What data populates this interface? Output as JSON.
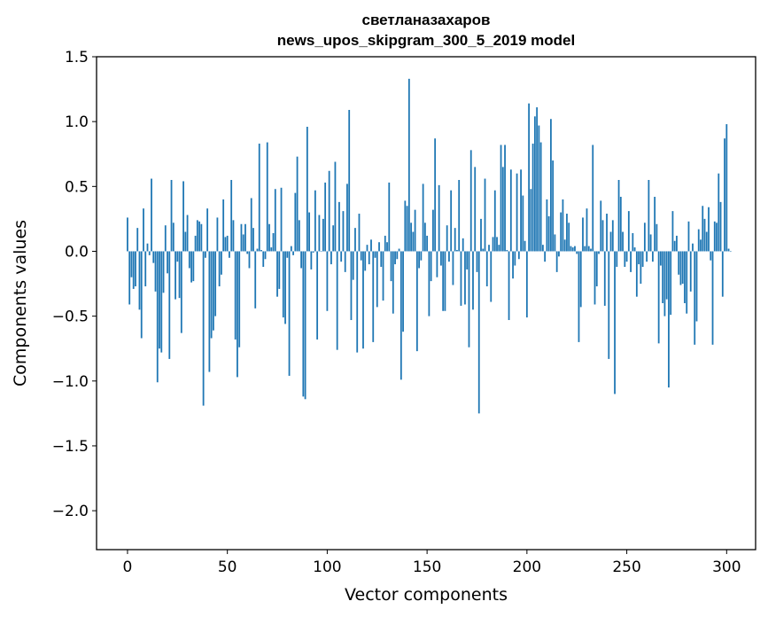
{
  "chart_data": {
    "type": "bar",
    "title": "светланазахаров",
    "subtitle": "news_upos_skipgram_300_5_2019 model",
    "xlabel": "Vector components",
    "ylabel": "Components values",
    "xlim": [
      -15.5,
      314.5
    ],
    "ylim": [
      -2.3,
      1.5
    ],
    "xticks": [
      0,
      50,
      100,
      150,
      200,
      250,
      300
    ],
    "xtick_labels": [
      "0",
      "50",
      "100",
      "150",
      "200",
      "250",
      "300"
    ],
    "yticks": [
      1.5,
      1.0,
      0.5,
      0.0,
      -0.5,
      -1.0,
      -1.5,
      -2.0
    ],
    "ytick_labels": [
      "1.5",
      "1.0",
      "0.5",
      "0.0",
      "−0.5",
      "−1.0",
      "−1.5",
      "−2.0"
    ],
    "bar_color": "#1f77b4",
    "series": [
      {
        "name": "светланазахаров",
        "values": [
          0.26,
          -0.41,
          -0.2,
          -0.29,
          -0.27,
          0.18,
          -0.45,
          -0.67,
          0.33,
          -0.27,
          0.06,
          -0.03,
          0.56,
          -0.09,
          -0.31,
          -1.01,
          -0.75,
          -0.78,
          -0.32,
          0.2,
          -0.17,
          -0.83,
          0.55,
          0.22,
          -0.37,
          -0.08,
          -0.36,
          -0.63,
          0.54,
          0.15,
          0.28,
          -0.13,
          -0.24,
          -0.23,
          0.12,
          0.24,
          0.23,
          0.21,
          -1.19,
          -0.05,
          0.33,
          -0.93,
          -0.67,
          -0.61,
          -0.5,
          0.26,
          -0.27,
          -0.18,
          0.4,
          0.11,
          0.12,
          -0.05,
          0.55,
          0.24,
          -0.68,
          -0.97,
          -0.74,
          0.21,
          0.13,
          0.21,
          -0.02,
          -0.13,
          0.41,
          0.18,
          -0.44,
          0.02,
          0.83,
          0.01,
          -0.12,
          -0.06,
          0.84,
          0.21,
          0.03,
          0.14,
          0.48,
          -0.35,
          -0.29,
          0.49,
          -0.51,
          -0.56,
          -0.05,
          -0.96,
          0.04,
          -0.03,
          0.45,
          0.73,
          0.24,
          -0.13,
          -1.12,
          -1.14,
          0.96,
          0.3,
          -0.14,
          -0.01,
          0.47,
          -0.68,
          0.28,
          0.0,
          0.25,
          0.53,
          -0.46,
          0.62,
          -0.1,
          0.2,
          0.69,
          -0.76,
          0.38,
          -0.08,
          0.31,
          -0.16,
          0.52,
          1.09,
          -0.53,
          -0.22,
          0.18,
          -0.78,
          0.29,
          -0.07,
          -0.75,
          -0.15,
          0.05,
          -0.1,
          0.09,
          -0.7,
          -0.05,
          -0.43,
          0.07,
          -0.12,
          -0.38,
          0.12,
          0.07,
          0.53,
          -0.23,
          -0.48,
          -0.1,
          -0.06,
          0.02,
          -0.99,
          -0.62,
          0.39,
          0.35,
          1.33,
          0.22,
          0.15,
          0.32,
          -0.77,
          -0.13,
          -0.07,
          0.52,
          0.22,
          0.12,
          -0.5,
          -0.23,
          0.32,
          0.87,
          -0.2,
          0.51,
          -0.11,
          -0.46,
          -0.46,
          0.2,
          -0.08,
          0.47,
          -0.26,
          0.18,
          0.01,
          0.55,
          -0.42,
          0.1,
          -0.41,
          -0.14,
          -0.74,
          0.78,
          -0.45,
          0.65,
          -0.16,
          -1.25,
          0.25,
          0.02,
          0.56,
          -0.27,
          0.05,
          -0.39,
          0.11,
          0.47,
          0.11,
          0.05,
          0.82,
          0.65,
          0.82,
          0.01,
          -0.53,
          0.63,
          -0.21,
          -0.11,
          0.6,
          -0.06,
          0.63,
          0.43,
          0.08,
          -0.51,
          1.14,
          0.48,
          0.83,
          1.04,
          1.11,
          0.97,
          0.84,
          0.05,
          -0.08,
          0.4,
          0.27,
          1.02,
          0.7,
          0.13,
          -0.16,
          -0.04,
          0.3,
          0.4,
          0.09,
          0.29,
          0.22,
          0.04,
          0.03,
          0.04,
          -0.02,
          -0.7,
          -0.43,
          0.26,
          0.04,
          0.33,
          0.04,
          0.02,
          0.82,
          -0.41,
          -0.27,
          -0.02,
          0.39,
          0.24,
          -0.42,
          0.29,
          -0.83,
          0.15,
          0.24,
          -1.1,
          -0.12,
          0.55,
          0.42,
          0.15,
          -0.12,
          -0.08,
          0.31,
          -0.16,
          0.14,
          0.03,
          -0.35,
          -0.1,
          -0.25,
          -0.12,
          0.22,
          -0.08,
          0.55,
          0.13,
          -0.08,
          0.42,
          0.21,
          -0.71,
          -0.11,
          -0.4,
          -0.5,
          -0.37,
          -1.05,
          -0.49,
          0.31,
          0.08,
          0.12,
          -0.18,
          -0.26,
          -0.25,
          -0.4,
          -0.48,
          0.23,
          -0.31,
          0.06,
          -0.72,
          -0.54,
          0.17,
          0.09,
          0.35,
          0.25,
          0.15,
          0.34,
          -0.07,
          -0.72,
          0.23,
          0.22,
          0.6,
          0.38,
          -0.35,
          0.87,
          0.98,
          0.02,
          0.0
        ]
      }
    ]
  }
}
